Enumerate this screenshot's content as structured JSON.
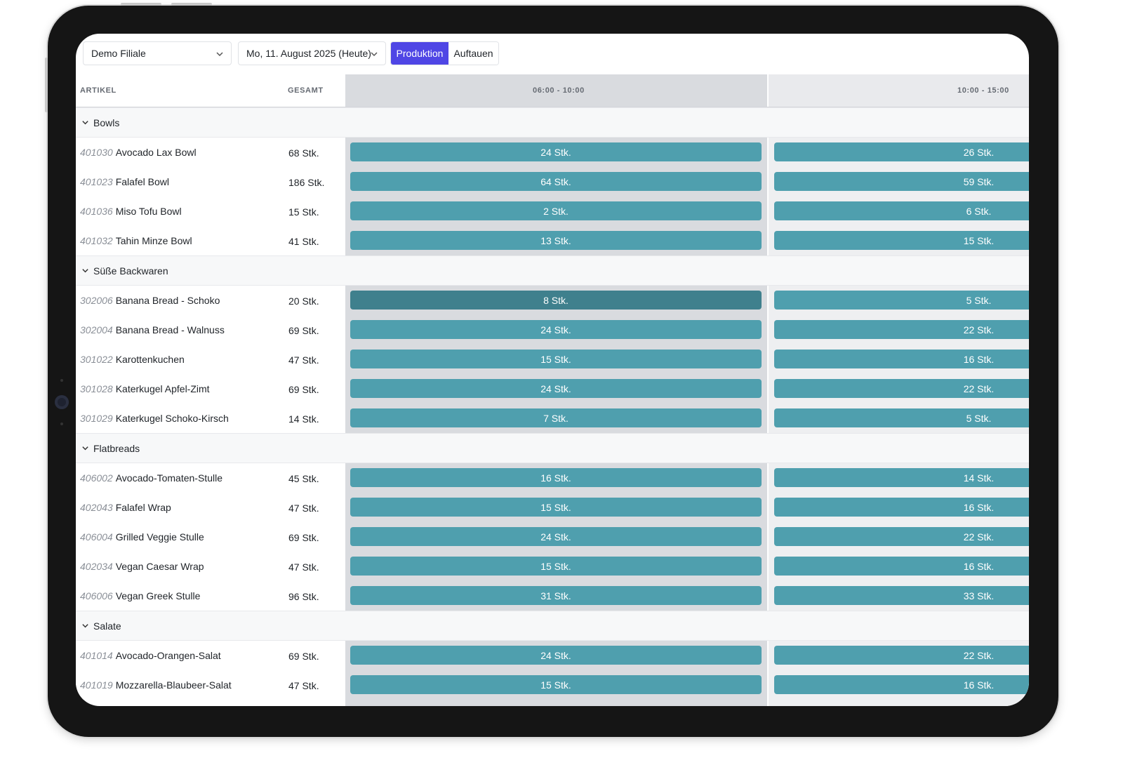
{
  "toolbar": {
    "store_select": "Demo Filiale",
    "date_select": "Mo, 11. August 2025 (Heute)",
    "segments": [
      "Produktion",
      "Auftauen"
    ],
    "active_segment": "Produktion",
    "accent_color": "#4f46e5"
  },
  "table": {
    "headers": {
      "article": "ARTIKEL",
      "total": "GESAMT",
      "slot_1": "06:00 - 10:00",
      "slot_2": "10:00 - 15:00"
    },
    "bar_color": "#4f9fae",
    "groups": [
      {
        "name": "Bowls",
        "items": [
          {
            "code": "401030",
            "name": "Avocado Lax Bowl",
            "total": "68 Stk.",
            "slot_1": "24 Stk.",
            "slot_2": "26 Stk."
          },
          {
            "code": "401023",
            "name": "Falafel Bowl",
            "total": "186 Stk.",
            "slot_1": "64 Stk.",
            "slot_2": "59 Stk."
          },
          {
            "code": "401036",
            "name": "Miso Tofu Bowl",
            "total": "15 Stk.",
            "slot_1": "2 Stk.",
            "slot_2": "6 Stk."
          },
          {
            "code": "401032",
            "name": "Tahin Minze Bowl",
            "total": "41 Stk.",
            "slot_1": "13 Stk.",
            "slot_2": "15 Stk."
          }
        ]
      },
      {
        "name": "Süße Backwaren",
        "items": [
          {
            "code": "302006",
            "name": "Banana Bread - Schoko",
            "total": "20 Stk.",
            "slot_1": "8 Stk.",
            "slot_2": "5 Stk.",
            "highlight": true
          },
          {
            "code": "302004",
            "name": "Banana Bread - Walnuss",
            "total": "69 Stk.",
            "slot_1": "24 Stk.",
            "slot_2": "22 Stk."
          },
          {
            "code": "301022",
            "name": "Karottenkuchen",
            "total": "47 Stk.",
            "slot_1": "15 Stk.",
            "slot_2": "16 Stk."
          },
          {
            "code": "301028",
            "name": "Katerkugel Apfel-Zimt",
            "total": "69 Stk.",
            "slot_1": "24 Stk.",
            "slot_2": "22 Stk."
          },
          {
            "code": "301029",
            "name": "Katerkugel Schoko-Kirsch",
            "total": "14 Stk.",
            "slot_1": "7 Stk.",
            "slot_2": "5 Stk."
          }
        ]
      },
      {
        "name": "Flatbreads",
        "items": [
          {
            "code": "406002",
            "name": "Avocado-Tomaten-Stulle",
            "total": "45 Stk.",
            "slot_1": "16 Stk.",
            "slot_2": "14 Stk."
          },
          {
            "code": "402043",
            "name": "Falafel Wrap",
            "total": "47 Stk.",
            "slot_1": "15 Stk.",
            "slot_2": "16 Stk."
          },
          {
            "code": "406004",
            "name": "Grilled Veggie Stulle",
            "total": "69 Stk.",
            "slot_1": "24 Stk.",
            "slot_2": "22 Stk."
          },
          {
            "code": "402034",
            "name": "Vegan Caesar Wrap",
            "total": "47 Stk.",
            "slot_1": "15 Stk.",
            "slot_2": "16 Stk."
          },
          {
            "code": "406006",
            "name": "Vegan Greek Stulle",
            "total": "96 Stk.",
            "slot_1": "31 Stk.",
            "slot_2": "33 Stk."
          }
        ]
      },
      {
        "name": "Salate",
        "items": [
          {
            "code": "401014",
            "name": "Avocado-Orangen-Salat",
            "total": "69 Stk.",
            "slot_1": "24 Stk.",
            "slot_2": "22 Stk."
          },
          {
            "code": "401019",
            "name": "Mozzarella-Blaubeer-Salat",
            "total": "47 Stk.",
            "slot_1": "15 Stk.",
            "slot_2": "16 Stk."
          }
        ]
      }
    ]
  }
}
